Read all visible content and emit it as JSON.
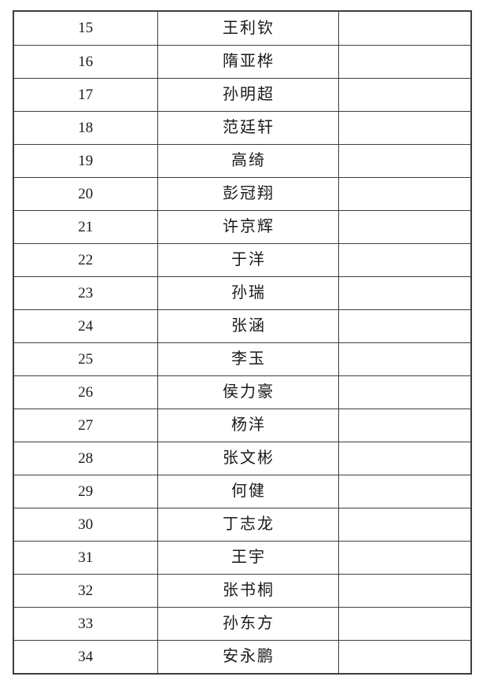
{
  "page": {
    "background": "#ffffff",
    "border_color": "#3d3d3d",
    "text_color": "#1a1a1a"
  },
  "table": {
    "rows": [
      {
        "number": "15",
        "name": "王利钦",
        "blank": ""
      },
      {
        "number": "16",
        "name": "隋亚桦",
        "blank": ""
      },
      {
        "number": "17",
        "name": "孙明超",
        "blank": ""
      },
      {
        "number": "18",
        "name": "范廷轩",
        "blank": ""
      },
      {
        "number": "19",
        "name": "高绮",
        "blank": ""
      },
      {
        "number": "20",
        "name": "彭冠翔",
        "blank": ""
      },
      {
        "number": "21",
        "name": "许京辉",
        "blank": ""
      },
      {
        "number": "22",
        "name": "于洋",
        "blank": ""
      },
      {
        "number": "23",
        "name": "孙瑞",
        "blank": ""
      },
      {
        "number": "24",
        "name": "张涵",
        "blank": ""
      },
      {
        "number": "25",
        "name": "李玉",
        "blank": ""
      },
      {
        "number": "26",
        "name": "侯力豪",
        "blank": ""
      },
      {
        "number": "27",
        "name": "杨洋",
        "blank": ""
      },
      {
        "number": "28",
        "name": "张文彬",
        "blank": ""
      },
      {
        "number": "29",
        "name": "何健",
        "blank": ""
      },
      {
        "number": "30",
        "name": "丁志龙",
        "blank": ""
      },
      {
        "number": "31",
        "name": "王宇",
        "blank": ""
      },
      {
        "number": "32",
        "name": "张书桐",
        "blank": ""
      },
      {
        "number": "33",
        "name": "孙东方",
        "blank": ""
      },
      {
        "number": "34",
        "name": "安永鹏",
        "blank": ""
      }
    ]
  }
}
